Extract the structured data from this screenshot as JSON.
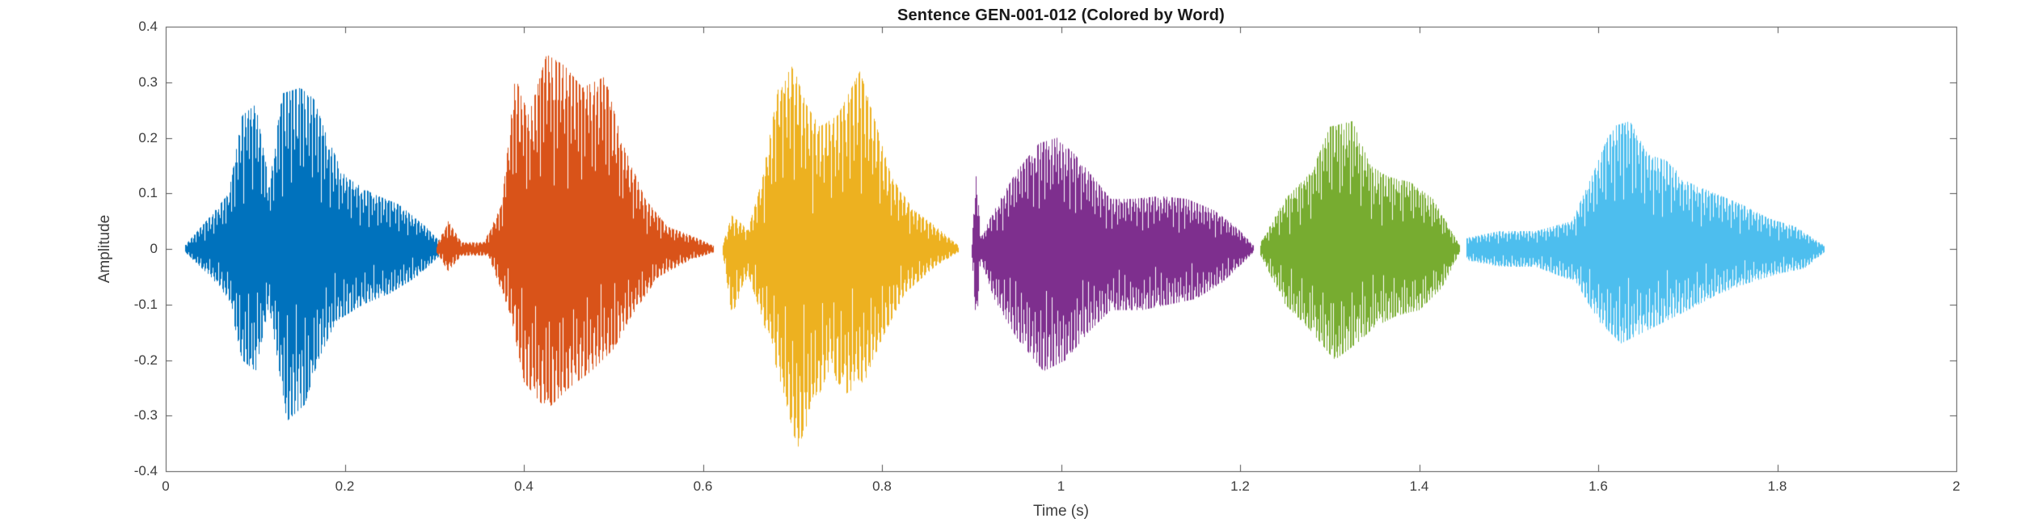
{
  "figure": {
    "background": "#ffffff"
  },
  "chart_data": {
    "type": "waveform",
    "title": "Sentence GEN-001-012 (Colored by Word)",
    "xlabel": "Time (s)",
    "ylabel": "Amplitude",
    "xlim": [
      0,
      2
    ],
    "ylim": [
      -0.4,
      0.4
    ],
    "axis_color": "#555555",
    "tick_label_color": "#3d3d3d",
    "xticks": [
      {
        "value": 0,
        "label": "0"
      },
      {
        "value": 0.2,
        "label": "0.2"
      },
      {
        "value": 0.4,
        "label": "0.4"
      },
      {
        "value": 0.6,
        "label": "0.6"
      },
      {
        "value": 0.8,
        "label": "0.8"
      },
      {
        "value": 1,
        "label": "1"
      },
      {
        "value": 1.2,
        "label": "1.2"
      },
      {
        "value": 1.4,
        "label": "1.4"
      },
      {
        "value": 1.6,
        "label": "1.6"
      },
      {
        "value": 1.8,
        "label": "1.8"
      },
      {
        "value": 2,
        "label": "2"
      }
    ],
    "yticks": [
      {
        "value": -0.4,
        "label": "-0.4"
      },
      {
        "value": -0.3,
        "label": "-0.3"
      },
      {
        "value": -0.2,
        "label": "-0.2"
      },
      {
        "value": -0.1,
        "label": "-0.1"
      },
      {
        "value": 0,
        "label": "0"
      },
      {
        "value": 0.1,
        "label": "0.1"
      },
      {
        "value": 0.2,
        "label": "0.2"
      },
      {
        "value": 0.3,
        "label": "0.3"
      },
      {
        "value": 0.4,
        "label": "0.4"
      }
    ],
    "segments": [
      {
        "name": "word-1",
        "color": "#0072BD",
        "t_start": 0.021,
        "t_end": 0.31,
        "pitch_hz": 150,
        "env_pos": [
          [
            0.021,
            0.006
          ],
          [
            0.05,
            0.06
          ],
          [
            0.07,
            0.1
          ],
          [
            0.085,
            0.24
          ],
          [
            0.1,
            0.26
          ],
          [
            0.115,
            0.12
          ],
          [
            0.13,
            0.28
          ],
          [
            0.15,
            0.29
          ],
          [
            0.165,
            0.27
          ],
          [
            0.18,
            0.2
          ],
          [
            0.2,
            0.13
          ],
          [
            0.23,
            0.1
          ],
          [
            0.26,
            0.08
          ],
          [
            0.29,
            0.04
          ],
          [
            0.31,
            0.006
          ]
        ],
        "env_neg": [
          [
            0.021,
            0.006
          ],
          [
            0.05,
            0.05
          ],
          [
            0.07,
            0.09
          ],
          [
            0.085,
            0.2
          ],
          [
            0.1,
            0.22
          ],
          [
            0.115,
            0.1
          ],
          [
            0.135,
            0.31
          ],
          [
            0.155,
            0.28
          ],
          [
            0.17,
            0.2
          ],
          [
            0.19,
            0.13
          ],
          [
            0.22,
            0.1
          ],
          [
            0.25,
            0.08
          ],
          [
            0.28,
            0.05
          ],
          [
            0.31,
            0.006
          ]
        ]
      },
      {
        "name": "word-2",
        "color": "#D95319",
        "t_start": 0.302,
        "t_end": 0.612,
        "pitch_hz": 130,
        "env_pos": [
          [
            0.302,
            0.006
          ],
          [
            0.315,
            0.05
          ],
          [
            0.33,
            0.012
          ],
          [
            0.355,
            0.012
          ],
          [
            0.375,
            0.08
          ],
          [
            0.39,
            0.31
          ],
          [
            0.405,
            0.24
          ],
          [
            0.425,
            0.35
          ],
          [
            0.445,
            0.33
          ],
          [
            0.465,
            0.29
          ],
          [
            0.49,
            0.31
          ],
          [
            0.51,
            0.19
          ],
          [
            0.535,
            0.09
          ],
          [
            0.56,
            0.04
          ],
          [
            0.585,
            0.025
          ],
          [
            0.612,
            0.006
          ]
        ],
        "env_neg": [
          [
            0.302,
            0.006
          ],
          [
            0.315,
            0.04
          ],
          [
            0.33,
            0.012
          ],
          [
            0.36,
            0.012
          ],
          [
            0.385,
            0.12
          ],
          [
            0.4,
            0.24
          ],
          [
            0.425,
            0.29
          ],
          [
            0.45,
            0.25
          ],
          [
            0.475,
            0.22
          ],
          [
            0.5,
            0.18
          ],
          [
            0.52,
            0.12
          ],
          [
            0.55,
            0.05
          ],
          [
            0.585,
            0.02
          ],
          [
            0.612,
            0.006
          ]
        ]
      },
      {
        "name": "word-3",
        "color": "#EDB120",
        "t_start": 0.622,
        "t_end": 0.885,
        "pitch_hz": 120,
        "env_pos": [
          [
            0.622,
            0.01
          ],
          [
            0.632,
            0.06
          ],
          [
            0.65,
            0.035
          ],
          [
            0.665,
            0.12
          ],
          [
            0.685,
            0.3
          ],
          [
            0.7,
            0.33
          ],
          [
            0.715,
            0.26
          ],
          [
            0.73,
            0.22
          ],
          [
            0.75,
            0.24
          ],
          [
            0.775,
            0.32
          ],
          [
            0.79,
            0.24
          ],
          [
            0.81,
            0.13
          ],
          [
            0.835,
            0.07
          ],
          [
            0.86,
            0.04
          ],
          [
            0.885,
            0.006
          ]
        ],
        "env_neg": [
          [
            0.622,
            0.01
          ],
          [
            0.632,
            0.12
          ],
          [
            0.65,
            0.045
          ],
          [
            0.665,
            0.12
          ],
          [
            0.69,
            0.26
          ],
          [
            0.705,
            0.36
          ],
          [
            0.72,
            0.3
          ],
          [
            0.74,
            0.22
          ],
          [
            0.76,
            0.26
          ],
          [
            0.78,
            0.24
          ],
          [
            0.8,
            0.16
          ],
          [
            0.825,
            0.08
          ],
          [
            0.86,
            0.03
          ],
          [
            0.885,
            0.006
          ]
        ]
      },
      {
        "name": "word-4",
        "color": "#7E2F8E",
        "t_start": 0.9,
        "t_end": 1.215,
        "pitch_hz": 160,
        "env_pos": [
          [
            0.9,
            0.01
          ],
          [
            0.905,
            0.14
          ],
          [
            0.91,
            0.02
          ],
          [
            0.925,
            0.07
          ],
          [
            0.95,
            0.14
          ],
          [
            0.975,
            0.19
          ],
          [
            0.995,
            0.2
          ],
          [
            1.015,
            0.17
          ],
          [
            1.035,
            0.13
          ],
          [
            1.055,
            0.09
          ],
          [
            1.08,
            0.09
          ],
          [
            1.11,
            0.095
          ],
          [
            1.14,
            0.09
          ],
          [
            1.17,
            0.07
          ],
          [
            1.195,
            0.04
          ],
          [
            1.215,
            0.006
          ]
        ],
        "env_neg": [
          [
            0.9,
            0.01
          ],
          [
            0.905,
            0.14
          ],
          [
            0.91,
            0.02
          ],
          [
            0.925,
            0.09
          ],
          [
            0.95,
            0.16
          ],
          [
            0.98,
            0.22
          ],
          [
            1.005,
            0.2
          ],
          [
            1.03,
            0.15
          ],
          [
            1.055,
            0.11
          ],
          [
            1.09,
            0.11
          ],
          [
            1.12,
            0.1
          ],
          [
            1.15,
            0.09
          ],
          [
            1.18,
            0.06
          ],
          [
            1.215,
            0.006
          ]
        ]
      },
      {
        "name": "word-5",
        "color": "#77AC30",
        "t_start": 1.222,
        "t_end": 1.445,
        "pitch_hz": 170,
        "env_pos": [
          [
            1.222,
            0.01
          ],
          [
            1.25,
            0.09
          ],
          [
            1.28,
            0.14
          ],
          [
            1.3,
            0.22
          ],
          [
            1.325,
            0.23
          ],
          [
            1.345,
            0.15
          ],
          [
            1.365,
            0.13
          ],
          [
            1.39,
            0.12
          ],
          [
            1.415,
            0.09
          ],
          [
            1.445,
            0.006
          ]
        ],
        "env_neg": [
          [
            1.222,
            0.01
          ],
          [
            1.25,
            0.1
          ],
          [
            1.28,
            0.15
          ],
          [
            1.305,
            0.2
          ],
          [
            1.33,
            0.17
          ],
          [
            1.35,
            0.14
          ],
          [
            1.375,
            0.12
          ],
          [
            1.4,
            0.11
          ],
          [
            1.425,
            0.07
          ],
          [
            1.445,
            0.006
          ]
        ]
      },
      {
        "name": "word-6",
        "color": "#4DBEEE",
        "t_start": 1.452,
        "t_end": 1.852,
        "pitch_hz": 150,
        "env_pos": [
          [
            1.452,
            0.02
          ],
          [
            1.49,
            0.032
          ],
          [
            1.53,
            0.032
          ],
          [
            1.57,
            0.05
          ],
          [
            1.595,
            0.14
          ],
          [
            1.615,
            0.22
          ],
          [
            1.635,
            0.23
          ],
          [
            1.655,
            0.17
          ],
          [
            1.675,
            0.16
          ],
          [
            1.7,
            0.12
          ],
          [
            1.73,
            0.1
          ],
          [
            1.76,
            0.08
          ],
          [
            1.79,
            0.055
          ],
          [
            1.82,
            0.04
          ],
          [
            1.852,
            0.006
          ]
        ],
        "env_neg": [
          [
            1.452,
            0.02
          ],
          [
            1.49,
            0.032
          ],
          [
            1.53,
            0.032
          ],
          [
            1.575,
            0.06
          ],
          [
            1.6,
            0.13
          ],
          [
            1.625,
            0.17
          ],
          [
            1.65,
            0.15
          ],
          [
            1.675,
            0.13
          ],
          [
            1.7,
            0.11
          ],
          [
            1.735,
            0.08
          ],
          [
            1.77,
            0.06
          ],
          [
            1.8,
            0.045
          ],
          [
            1.83,
            0.035
          ],
          [
            1.852,
            0.006
          ]
        ]
      }
    ]
  }
}
